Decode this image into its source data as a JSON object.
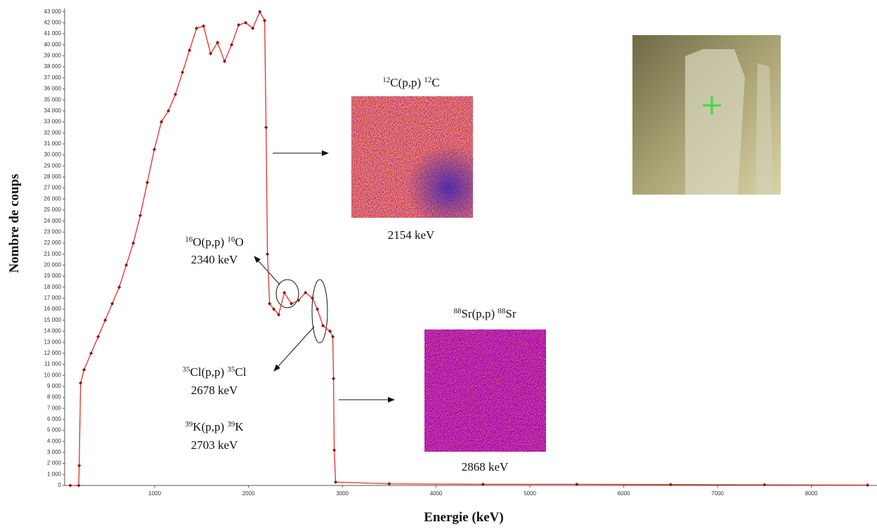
{
  "chart_data": {
    "type": "line",
    "x_label": "Energie (keV)",
    "y_label": "Nombre de coups",
    "xlim": [
      40,
      8700
    ],
    "ylim": [
      0,
      43300
    ],
    "xticks": [
      1000,
      2000,
      3000,
      4000,
      5000,
      6000,
      7000,
      8000
    ],
    "yticks": [
      {
        "value": 0,
        "label": "0"
      },
      {
        "value": 1000,
        "label": "1 000"
      },
      {
        "value": 2000,
        "label": "2 000"
      },
      {
        "value": 3000,
        "label": "3 000"
      },
      {
        "value": 4000,
        "label": "4 000"
      },
      {
        "value": 5000,
        "label": "5 000"
      },
      {
        "value": 6000,
        "label": "6 000"
      },
      {
        "value": 7000,
        "label": "7 000"
      },
      {
        "value": 8000,
        "label": "8 000"
      },
      {
        "value": 9000,
        "label": "9 000"
      },
      {
        "value": 10000,
        "label": "10 000"
      },
      {
        "value": 11000,
        "label": "11 000"
      },
      {
        "value": 12000,
        "label": "12 000"
      },
      {
        "value": 13000,
        "label": "13 000"
      },
      {
        "value": 14000,
        "label": "14 000"
      },
      {
        "value": 15000,
        "label": "15 000"
      },
      {
        "value": 16000,
        "label": "16 000"
      },
      {
        "value": 17000,
        "label": "17 000"
      },
      {
        "value": 18000,
        "label": "18 000"
      },
      {
        "value": 19000,
        "label": "19 000"
      },
      {
        "value": 20000,
        "label": "20 000"
      },
      {
        "value": 21000,
        "label": "21 000"
      },
      {
        "value": 22000,
        "label": "22 000"
      },
      {
        "value": 23000,
        "label": "23 000"
      },
      {
        "value": 24000,
        "label": "24 000"
      },
      {
        "value": 25000,
        "label": "25 000"
      },
      {
        "value": 26000,
        "label": "26 000"
      },
      {
        "value": 27000,
        "label": "27 000"
      },
      {
        "value": 28000,
        "label": "28 000"
      },
      {
        "value": 29000,
        "label": "29 000"
      },
      {
        "value": 30000,
        "label": "30 000"
      },
      {
        "value": 31000,
        "label": "31 000"
      },
      {
        "value": 32000,
        "label": "32 000"
      },
      {
        "value": 33000,
        "label": "33 000"
      },
      {
        "value": 34000,
        "label": "34 000"
      },
      {
        "value": 35000,
        "label": "35 000"
      },
      {
        "value": 36000,
        "label": "36 000"
      },
      {
        "value": 37000,
        "label": "37 000"
      },
      {
        "value": 38000,
        "label": "38 000"
      },
      {
        "value": 39000,
        "label": "39 000"
      },
      {
        "value": 40000,
        "label": "40 000"
      },
      {
        "value": 41000,
        "label": "41 000"
      },
      {
        "value": 42000,
        "label": "42 000"
      },
      {
        "value": 43000,
        "label": "43 000"
      }
    ],
    "line_color": "#e0302c",
    "marker_color": "#8b1a1a",
    "x": [
      100,
      190,
      195,
      210,
      247,
      322,
      397,
      472,
      547,
      622,
      697,
      772,
      846,
      921,
      996,
      1071,
      1146,
      1221,
      1296,
      1371,
      1446,
      1521,
      1596,
      1670,
      1745,
      1820,
      1895,
      1970,
      2045,
      2120,
      2172,
      2187,
      2202,
      2225,
      2270,
      2322,
      2382,
      2457,
      2532,
      2607,
      2682,
      2734,
      2794,
      2869,
      2899,
      2906,
      2914,
      2929,
      3500,
      4500,
      5500,
      6500,
      7500,
      8600
    ],
    "values": [
      0,
      0,
      1800,
      9300,
      10500,
      12000,
      13500,
      15000,
      16500,
      18000,
      20000,
      22000,
      24500,
      27500,
      30500,
      33000,
      34000,
      35500,
      37500,
      39500,
      41500,
      41700,
      39200,
      40200,
      38500,
      40000,
      41800,
      42000,
      41500,
      43000,
      42200,
      32500,
      21000,
      16500,
      16000,
      15500,
      17500,
      16500,
      16800,
      17500,
      17000,
      16000,
      14500,
      14000,
      13500,
      9700,
      3200,
      300,
      150,
      100,
      100,
      80,
      60,
      30
    ],
    "annotations": [
      {
        "text": [
          "12",
          "C(p,p) ",
          "12",
          "C"
        ],
        "energy": "2154 keV"
      },
      {
        "text": [
          "16",
          "O(p,p) ",
          "16",
          "O"
        ],
        "energy": "2340 keV"
      },
      {
        "text": [
          "88",
          "Sr(p,p) ",
          "88",
          "Sr"
        ],
        "energy": "2868 keV"
      },
      {
        "text": [
          "35",
          "Cl(p,p) ",
          "35",
          "Cl"
        ],
        "energy": "2678 keV"
      },
      {
        "text": [
          "39",
          "K(p,p) ",
          "39",
          "K"
        ],
        "energy": "2703 keV"
      }
    ]
  }
}
